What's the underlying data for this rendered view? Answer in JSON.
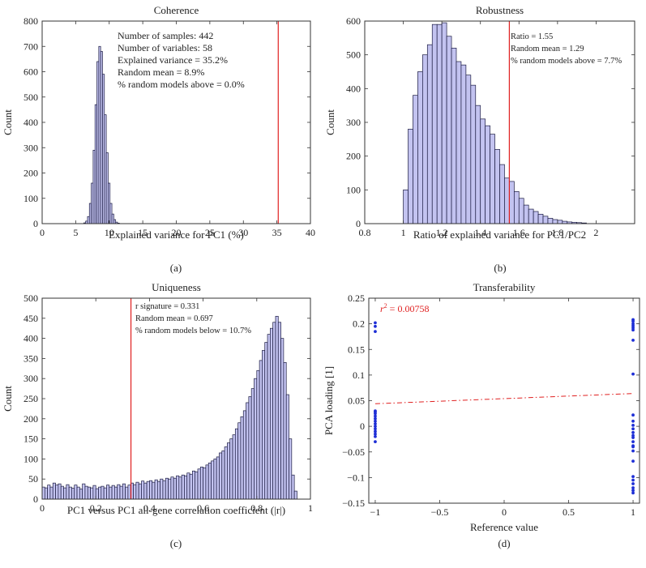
{
  "chart_data": [
    {
      "id": "a",
      "type": "bar",
      "title": "Coherence",
      "xlabel": "Explained variance for PC1 (%)",
      "ylabel": "Count",
      "caption": "(a)",
      "xlim": [
        0,
        40
      ],
      "ylim": [
        0,
        800
      ],
      "xticks": [
        0,
        5,
        10,
        15,
        20,
        25,
        30,
        35,
        40
      ],
      "yticks": [
        0,
        100,
        200,
        300,
        400,
        500,
        600,
        700,
        800
      ],
      "bin_start": 6.2,
      "bin_width": 0.28,
      "counts": [
        3,
        10,
        28,
        80,
        160,
        290,
        470,
        640,
        700,
        680,
        590,
        430,
        280,
        160,
        80,
        38,
        16,
        6,
        2
      ],
      "reference_line": 35.2,
      "annotations": [
        "Number of samples: 442",
        "Number of variables: 58",
        "Explained variance = 35.2%",
        "Random mean = 8.9%",
        "% random models above = 0.0%"
      ],
      "colors": {
        "bar": "#c3c3f0",
        "edge": "#1a1a40",
        "line": "#e02020"
      }
    },
    {
      "id": "b",
      "type": "bar",
      "title": "Robustness",
      "xlabel": "Ratio of explained variance for PC1/PC2",
      "ylabel": "Count",
      "caption": "(b)",
      "xlim": [
        0.8,
        2.2
      ],
      "ylim": [
        0,
        600
      ],
      "xticks": [
        0.8,
        1,
        1.2,
        1.4,
        1.6,
        1.8,
        2
      ],
      "yticks": [
        0,
        100,
        200,
        300,
        400,
        500,
        600
      ],
      "bin_start": 1.0,
      "bin_width": 0.025,
      "counts": [
        100,
        280,
        380,
        450,
        500,
        530,
        590,
        590,
        595,
        555,
        520,
        480,
        470,
        440,
        410,
        350,
        310,
        290,
        265,
        220,
        175,
        135,
        125,
        95,
        75,
        55,
        43,
        36,
        28,
        22,
        16,
        12,
        10,
        7,
        5,
        4,
        3,
        2
      ],
      "reference_line": 1.55,
      "annotations": [
        "Ratio = 1.55",
        "Random mean = 1.29",
        "% random models above = 7.7%"
      ],
      "colors": {
        "bar": "#c3c3f0",
        "edge": "#1a1a40",
        "line": "#e02020"
      }
    },
    {
      "id": "c",
      "type": "bar",
      "title": "Uniqueness",
      "xlabel": "PC1 versus PC1 all-gene correlation coefficient (|r|)",
      "ylabel": "Count",
      "caption": "(c)",
      "xlim": [
        0,
        1
      ],
      "ylim": [
        0,
        500
      ],
      "xticks": [
        0,
        0.2,
        0.4,
        0.6,
        0.8,
        1
      ],
      "yticks": [
        0,
        50,
        100,
        150,
        200,
        250,
        300,
        350,
        400,
        450,
        500
      ],
      "bin_start": 0.0,
      "bin_width": 0.01,
      "counts": [
        30,
        28,
        35,
        30,
        40,
        35,
        38,
        32,
        28,
        36,
        30,
        27,
        35,
        30,
        25,
        38,
        32,
        30,
        28,
        34,
        26,
        30,
        32,
        28,
        35,
        30,
        34,
        30,
        36,
        32,
        38,
        30,
        35,
        40,
        36,
        42,
        38,
        45,
        40,
        44,
        46,
        42,
        48,
        44,
        50,
        46,
        52,
        50,
        55,
        52,
        58,
        55,
        60,
        58,
        65,
        62,
        70,
        68,
        75,
        80,
        78,
        85,
        90,
        95,
        100,
        105,
        115,
        120,
        130,
        140,
        150,
        160,
        175,
        190,
        205,
        220,
        240,
        255,
        275,
        300,
        320,
        345,
        370,
        390,
        410,
        425,
        440,
        455,
        440,
        400,
        340,
        260,
        150,
        60,
        20
      ],
      "reference_line": 0.331,
      "annotations": [
        "r signature = 0.331",
        "Random mean = 0.697",
        "% random models below = 10.7%"
      ],
      "colors": {
        "bar": "#c3c3f0",
        "edge": "#1a1a40",
        "line": "#e02020"
      }
    },
    {
      "id": "d",
      "type": "scatter",
      "title": "Transferability",
      "xlabel": "Reference value",
      "ylabel": "PCA loading [1]",
      "caption": "(d)",
      "xlim": [
        -1.05,
        1.05
      ],
      "ylim": [
        -0.15,
        0.25
      ],
      "xticks": [
        -1,
        -0.5,
        0,
        0.5,
        1
      ],
      "xtick_labels": [
        "−1",
        "−0.5",
        "0",
        "0.5",
        "1"
      ],
      "yticks": [
        -0.15,
        -0.1,
        -0.05,
        0,
        0.05,
        0.1,
        0.15,
        0.2,
        0.25
      ],
      "ytick_labels": [
        "−0.15",
        "−0.1",
        "−0.05",
        "0",
        "0.05",
        "0.1",
        "0.15",
        "0.2",
        "0.25"
      ],
      "points_x": [
        -1,
        -1,
        -1,
        -1,
        -1,
        -1,
        -1,
        -1,
        -1,
        -1,
        -1,
        -1,
        -1,
        -1,
        -1,
        -1,
        1,
        1,
        1,
        1,
        1,
        1,
        1,
        1,
        1,
        1,
        1,
        1,
        1,
        1,
        1,
        1,
        1,
        1,
        1,
        1,
        1,
        1,
        1,
        1,
        1,
        1
      ],
      "points_y": [
        0.202,
        0.195,
        0.185,
        0.03,
        0.025,
        0.02,
        0.015,
        0.01,
        0.005,
        0.0,
        -0.005,
        -0.01,
        -0.015,
        -0.02,
        -0.03,
        0.028,
        0.208,
        0.205,
        0.2,
        0.196,
        0.192,
        0.188,
        0.168,
        0.102,
        0.022,
        0.01,
        0.002,
        -0.005,
        -0.012,
        -0.018,
        -0.022,
        -0.03,
        -0.04,
        -0.048,
        -0.068,
        -0.098,
        -0.105,
        -0.112,
        -0.12,
        -0.125,
        -0.13,
        -0.038
      ],
      "fit_line": {
        "x": [
          -1,
          1
        ],
        "y": [
          0.044,
          0.064
        ]
      },
      "r2_prefix": "r",
      "r2_exponent": "2",
      "r2_value": " = 0.00758",
      "colors": {
        "points": "#1e2fd6",
        "fit": "#e02020",
        "label": "#e02020"
      }
    }
  ]
}
